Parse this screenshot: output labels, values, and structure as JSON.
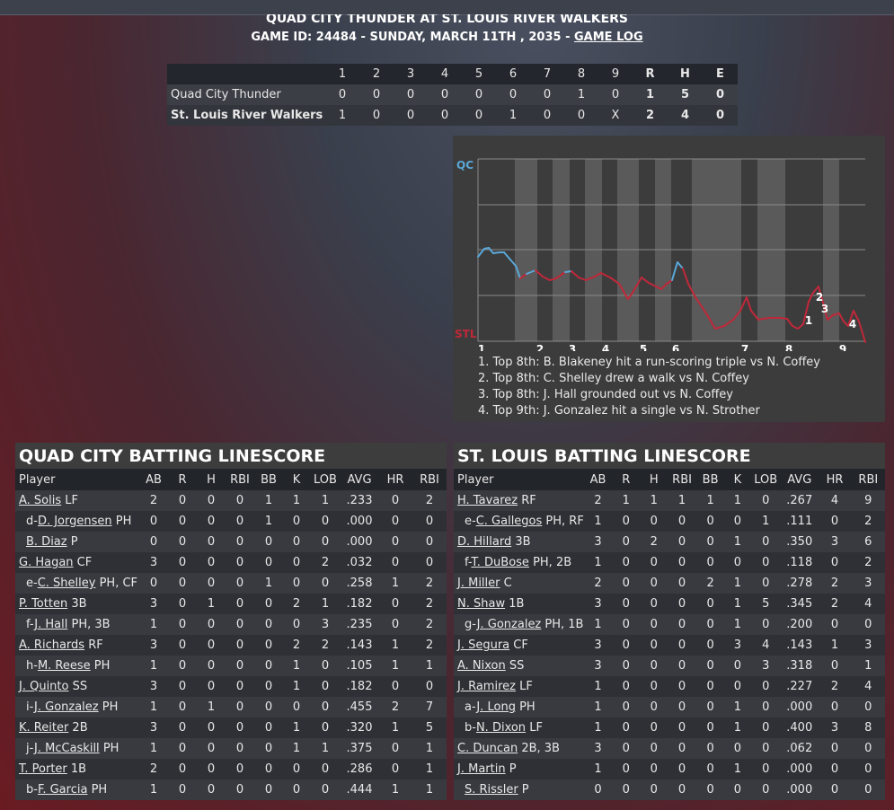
{
  "header": {
    "matchup": "QUAD CITY THUNDER AT ST. LOUIS RIVER WALKERS",
    "game_info": "GAME ID: 24484 - SUNDAY, MARCH 11TH , 2035 - ",
    "game_log_link": "GAME LOG"
  },
  "linescore": {
    "innings": [
      "1",
      "2",
      "3",
      "4",
      "5",
      "6",
      "7",
      "8",
      "9"
    ],
    "totals_headers": [
      "R",
      "H",
      "E"
    ],
    "teams": [
      {
        "name": "Quad City Thunder",
        "innings": [
          "0",
          "0",
          "0",
          "0",
          "0",
          "0",
          "0",
          "1",
          "0"
        ],
        "totals": [
          "1",
          "5",
          "0"
        ]
      },
      {
        "name": "St. Louis River Walkers",
        "innings": [
          "1",
          "0",
          "0",
          "0",
          "0",
          "1",
          "0",
          "0",
          "X"
        ],
        "totals": [
          "2",
          "4",
          "0"
        ]
      }
    ]
  },
  "win_prob": {
    "top_label": "QC",
    "bottom_label": "STL",
    "inning_labels": [
      "1",
      "2",
      "3",
      "4",
      "5",
      "6",
      "7",
      "8",
      "9"
    ],
    "event_markers": [
      "1",
      "2",
      "3",
      "4"
    ],
    "colors": {
      "qc": "#5aa8d8",
      "stl": "#c0283a"
    },
    "notes": [
      "1. Top 8th: B. Blakeney hit a run-scoring triple vs N. Coffey",
      "2. Top 8th: C. Shelley drew a walk vs N. Coffey",
      "3. Top 8th: J. Hall grounded out vs N. Coffey",
      "4. Top 9th: J. Gonzalez hit a single vs N. Strother"
    ]
  },
  "batting_columns": [
    "Player",
    "AB",
    "R",
    "H",
    "RBI",
    "BB",
    "K",
    "LOB",
    "AVG",
    "HR",
    "RBI"
  ],
  "quad_city": {
    "title": "QUAD CITY BATTING LINESCORE",
    "rows": [
      {
        "prefix": "",
        "name": "A. Solis",
        "pos": " LF",
        "stats": [
          "2",
          "0",
          "0",
          "0",
          "1",
          "1",
          "1",
          ".233",
          "0",
          "2"
        ]
      },
      {
        "prefix": "d-",
        "name": "D. Jorgensen",
        "pos": " PH",
        "stats": [
          "0",
          "0",
          "0",
          "0",
          "1",
          "0",
          "0",
          ".000",
          "0",
          "0"
        ]
      },
      {
        "prefix": "",
        "name": "B. Diaz",
        "pos": " P",
        "stats": [
          "0",
          "0",
          "0",
          "0",
          "0",
          "0",
          "0",
          ".000",
          "0",
          "0"
        ],
        "indent": true
      },
      {
        "prefix": "",
        "name": "G. Hagan",
        "pos": " CF",
        "stats": [
          "3",
          "0",
          "0",
          "0",
          "0",
          "0",
          "2",
          ".032",
          "0",
          "0"
        ]
      },
      {
        "prefix": "e-",
        "name": "C. Shelley",
        "pos": " PH, CF",
        "stats": [
          "0",
          "0",
          "0",
          "0",
          "1",
          "0",
          "0",
          ".258",
          "1",
          "2"
        ]
      },
      {
        "prefix": "",
        "name": "P. Totten",
        "pos": " 3B",
        "stats": [
          "3",
          "0",
          "1",
          "0",
          "0",
          "2",
          "1",
          ".182",
          "0",
          "2"
        ]
      },
      {
        "prefix": "f-",
        "name": "J. Hall",
        "pos": " PH, 3B",
        "stats": [
          "1",
          "0",
          "0",
          "0",
          "0",
          "0",
          "3",
          ".235",
          "0",
          "2"
        ]
      },
      {
        "prefix": "",
        "name": "A. Richards",
        "pos": " RF",
        "stats": [
          "3",
          "0",
          "0",
          "0",
          "0",
          "2",
          "2",
          ".143",
          "1",
          "2"
        ]
      },
      {
        "prefix": "h-",
        "name": "M. Reese",
        "pos": " PH",
        "stats": [
          "1",
          "0",
          "0",
          "0",
          "0",
          "1",
          "0",
          ".105",
          "1",
          "1"
        ]
      },
      {
        "prefix": "",
        "name": "J. Quinto",
        "pos": " SS",
        "stats": [
          "3",
          "0",
          "0",
          "0",
          "0",
          "1",
          "0",
          ".182",
          "0",
          "0"
        ]
      },
      {
        "prefix": "i-",
        "name": "J. Gonzalez",
        "pos": " PH",
        "stats": [
          "1",
          "0",
          "1",
          "0",
          "0",
          "0",
          "0",
          ".455",
          "2",
          "7"
        ]
      },
      {
        "prefix": "",
        "name": "K. Reiter",
        "pos": " 2B",
        "stats": [
          "3",
          "0",
          "0",
          "0",
          "0",
          "1",
          "0",
          ".320",
          "1",
          "5"
        ]
      },
      {
        "prefix": "j-",
        "name": "J. McCaskill",
        "pos": " PH",
        "stats": [
          "1",
          "0",
          "0",
          "0",
          "0",
          "1",
          "1",
          ".375",
          "0",
          "1"
        ]
      },
      {
        "prefix": "",
        "name": "T. Porter",
        "pos": " 1B",
        "stats": [
          "2",
          "0",
          "0",
          "0",
          "0",
          "0",
          "0",
          ".286",
          "0",
          "1"
        ]
      },
      {
        "prefix": "b-",
        "name": "F. Garcia",
        "pos": " PH",
        "stats": [
          "1",
          "0",
          "0",
          "0",
          "0",
          "0",
          "0",
          ".444",
          "1",
          "1"
        ]
      }
    ]
  },
  "st_louis": {
    "title": "ST. LOUIS BATTING LINESCORE",
    "rows": [
      {
        "prefix": "",
        "name": "H. Tavarez",
        "pos": " RF",
        "stats": [
          "2",
          "1",
          "1",
          "1",
          "1",
          "1",
          "0",
          ".267",
          "4",
          "9"
        ]
      },
      {
        "prefix": "e-",
        "name": "C. Gallegos",
        "pos": " PH, RF",
        "stats": [
          "1",
          "0",
          "0",
          "0",
          "0",
          "0",
          "1",
          ".111",
          "0",
          "2"
        ]
      },
      {
        "prefix": "",
        "name": "D. Hillard",
        "pos": " 3B",
        "stats": [
          "3",
          "0",
          "2",
          "0",
          "0",
          "1",
          "0",
          ".350",
          "3",
          "6"
        ]
      },
      {
        "prefix": "f-",
        "name": "T. DuBose",
        "pos": " PH, 2B",
        "stats": [
          "1",
          "0",
          "0",
          "0",
          "0",
          "0",
          "0",
          ".118",
          "0",
          "2"
        ]
      },
      {
        "prefix": "",
        "name": "J. Miller",
        "pos": " C",
        "stats": [
          "2",
          "0",
          "0",
          "0",
          "2",
          "1",
          "0",
          ".278",
          "2",
          "3"
        ]
      },
      {
        "prefix": "",
        "name": "N. Shaw",
        "pos": " 1B",
        "stats": [
          "3",
          "0",
          "0",
          "0",
          "0",
          "1",
          "5",
          ".345",
          "2",
          "4"
        ]
      },
      {
        "prefix": "g-",
        "name": "J. Gonzalez",
        "pos": " PH, 1B",
        "stats": [
          "1",
          "0",
          "0",
          "0",
          "0",
          "1",
          "0",
          ".200",
          "0",
          "0"
        ]
      },
      {
        "prefix": "",
        "name": "J. Segura",
        "pos": " CF",
        "stats": [
          "3",
          "0",
          "0",
          "0",
          "0",
          "3",
          "4",
          ".143",
          "1",
          "3"
        ]
      },
      {
        "prefix": "",
        "name": "A. Nixon",
        "pos": " SS",
        "stats": [
          "3",
          "0",
          "0",
          "0",
          "0",
          "0",
          "3",
          ".318",
          "0",
          "1"
        ]
      },
      {
        "prefix": "",
        "name": "J. Ramirez",
        "pos": " LF",
        "stats": [
          "1",
          "0",
          "0",
          "0",
          "0",
          "0",
          "0",
          ".227",
          "2",
          "4"
        ]
      },
      {
        "prefix": "a-",
        "name": "J. Long",
        "pos": " PH",
        "stats": [
          "1",
          "0",
          "0",
          "0",
          "0",
          "1",
          "0",
          ".000",
          "0",
          "0"
        ]
      },
      {
        "prefix": "b-",
        "name": "N. Dixon",
        "pos": " LF",
        "stats": [
          "1",
          "0",
          "0",
          "0",
          "0",
          "1",
          "0",
          ".400",
          "3",
          "8"
        ]
      },
      {
        "prefix": "",
        "name": "C. Duncan",
        "pos": " 2B, 3B",
        "stats": [
          "3",
          "0",
          "0",
          "0",
          "0",
          "0",
          "0",
          ".062",
          "0",
          "0"
        ]
      },
      {
        "prefix": "",
        "name": "J. Martin",
        "pos": " P",
        "stats": [
          "1",
          "0",
          "0",
          "0",
          "0",
          "1",
          "0",
          ".000",
          "0",
          "0"
        ]
      },
      {
        "prefix": "",
        "name": "S. Rissler",
        "pos": " P",
        "stats": [
          "0",
          "0",
          "0",
          "0",
          "0",
          "0",
          "0",
          ".000",
          "0",
          "0"
        ],
        "indent": true
      }
    ]
  }
}
